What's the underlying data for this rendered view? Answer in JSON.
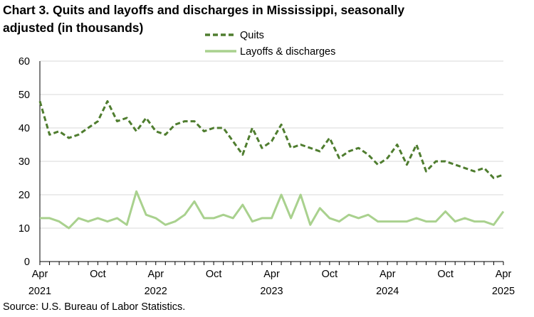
{
  "chart_data": {
    "type": "line",
    "title": "Chart 3. Quits and layoffs and discharges in Mississippi, seasonally adjusted (in thousands)",
    "source": "Source: U.S. Bureau of Labor Statistics.",
    "ylim": [
      0,
      60
    ],
    "yticks": [
      0,
      10,
      20,
      30,
      40,
      50,
      60
    ],
    "x_start": "2021-04",
    "x_end": "2025-04",
    "xticks": [
      {
        "month": "Apr",
        "year": "2021",
        "index": 0
      },
      {
        "month": "Oct",
        "year": "",
        "index": 6
      },
      {
        "month": "Apr",
        "year": "2022",
        "index": 12
      },
      {
        "month": "Oct",
        "year": "",
        "index": 18
      },
      {
        "month": "Apr",
        "year": "2023",
        "index": 24
      },
      {
        "month": "Oct",
        "year": "",
        "index": 30
      },
      {
        "month": "Apr",
        "year": "2024",
        "index": 36
      },
      {
        "month": "Oct",
        "year": "",
        "index": 42
      },
      {
        "month": "Apr",
        "year": "2025",
        "index": 48
      }
    ],
    "grid": true,
    "legend_position": "top-center",
    "series": [
      {
        "name": "Quits",
        "color": "#4f7d2f",
        "style": "dashed",
        "values": [
          48,
          38,
          39,
          37,
          38,
          40,
          42,
          48,
          42,
          43,
          39,
          43,
          39,
          38,
          41,
          42,
          42,
          39,
          40,
          40,
          36,
          32,
          40,
          34,
          36,
          41,
          34,
          35,
          34,
          33,
          37,
          31,
          33,
          34,
          32,
          29,
          31,
          35,
          29,
          35,
          27,
          30,
          30,
          29,
          28,
          27,
          28,
          25,
          26
        ]
      },
      {
        "name": "Layoffs & discharges",
        "color": "#a9d18e",
        "style": "solid",
        "values": [
          13,
          13,
          12,
          10,
          13,
          12,
          13,
          12,
          13,
          11,
          21,
          14,
          13,
          11,
          12,
          14,
          18,
          13,
          13,
          14,
          13,
          17,
          12,
          13,
          13,
          20,
          13,
          20,
          11,
          16,
          13,
          12,
          14,
          13,
          14,
          12,
          12,
          12,
          12,
          13,
          12,
          12,
          15,
          12,
          13,
          12,
          12,
          11,
          15
        ]
      }
    ]
  }
}
